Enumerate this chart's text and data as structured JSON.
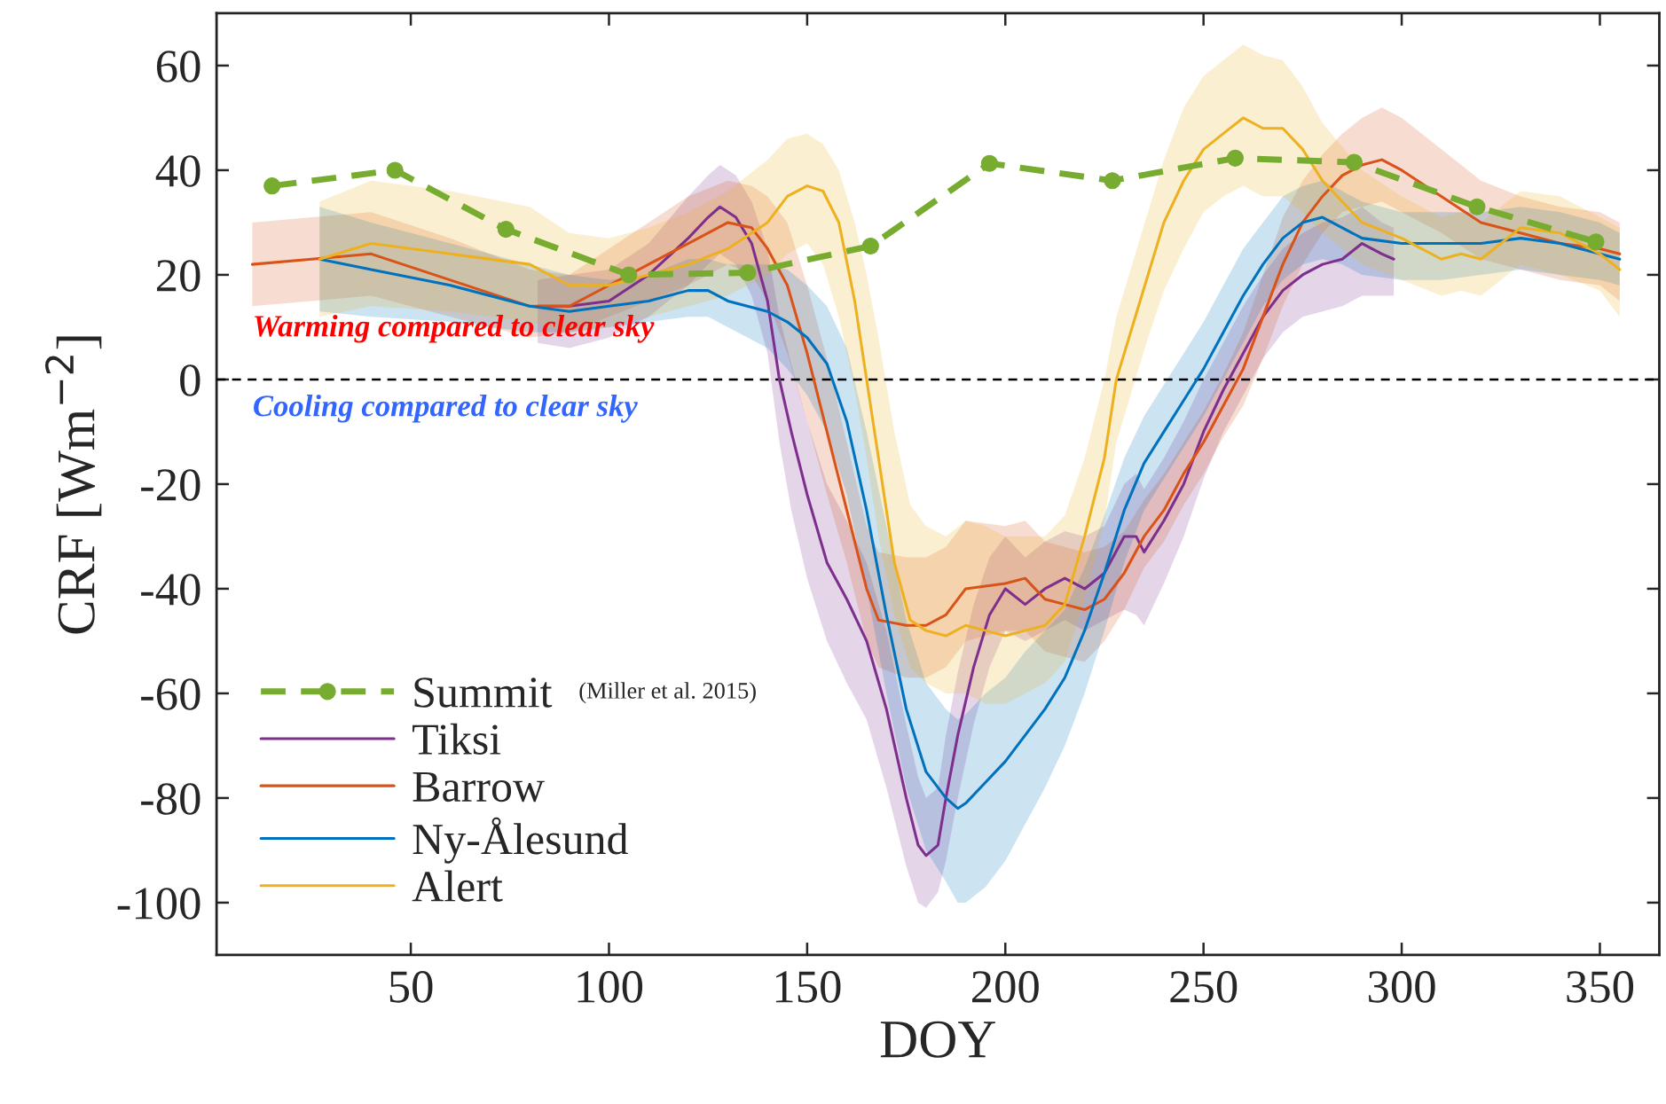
{
  "chart_data": {
    "type": "line",
    "xlabel": "DOY",
    "ylabel": "CRF [Wm$^{−2}$]",
    "xlim": [
      1,
      365
    ],
    "ylim": [
      -110,
      70
    ],
    "xticks": [
      50,
      100,
      150,
      200,
      250,
      300,
      350
    ],
    "yticks": [
      {
        "value": -100,
        "label": "-100"
      },
      {
        "value": -80,
        "label": "-80"
      },
      {
        "value": -60,
        "label": "-60"
      },
      {
        "value": -40,
        "label": "-40"
      },
      {
        "value": -20,
        "label": "-20"
      },
      0,
      20,
      40,
      60
    ],
    "grid": false,
    "legend": "bottom left",
    "ref_lines": [
      {
        "axis": "y",
        "value": 0,
        "color": "#000000",
        "line_style": "dashed"
      }
    ],
    "annotations": [
      "Warming compared to clear sky",
      "Cooling compared to clear sky",
      "(Miller et al. 2015)"
    ],
    "series": [
      {
        "name": "Summit",
        "color": "#77ac30",
        "marker": "circle",
        "line_style": "dashed",
        "x": [
          15,
          46,
          74,
          105,
          135,
          166,
          196,
          227,
          258,
          288,
          319,
          349
        ],
        "values": [
          37,
          40,
          28.7,
          20,
          20.4,
          25.5,
          41.3,
          38,
          42.3,
          41.5,
          33,
          26.3
        ]
      },
      {
        "name": "Tiksi",
        "color": "#7e2f8e",
        "marker": "none",
        "line_style": "solid",
        "x": [
          82,
          90,
          100,
          110,
          120,
          125,
          128,
          132,
          136,
          140,
          143,
          146,
          150,
          155,
          160,
          165,
          170,
          175,
          178,
          180,
          183,
          185,
          188,
          192,
          196,
          200,
          205,
          210,
          215,
          220,
          225,
          230,
          233,
          235,
          240,
          245,
          250,
          255,
          260,
          265,
          270,
          275,
          280,
          285,
          290,
          295,
          298
        ],
        "values": [
          14,
          14,
          15,
          20,
          27,
          31,
          33,
          31,
          26,
          15,
          0,
          -10,
          -22,
          -35,
          -42,
          -50,
          -63,
          -80,
          -89,
          -91,
          -89,
          -80,
          -68,
          -55,
          -45,
          -40,
          -43,
          -40,
          -38,
          -40,
          -37,
          -30,
          -30,
          -33,
          -27,
          -20,
          -10,
          -2,
          5,
          12,
          17,
          20,
          22,
          23,
          26,
          24,
          23
        ],
        "lower": [
          7,
          6,
          8,
          12,
          18,
          22,
          24,
          22,
          16,
          5,
          -12,
          -25,
          -38,
          -50,
          -58,
          -65,
          -78,
          -93,
          -100,
          -101,
          -98,
          -92,
          -80,
          -66,
          -55,
          -48,
          -50,
          -48,
          -46,
          -48,
          -46,
          -44,
          -45,
          -47,
          -39,
          -30,
          -19,
          -10,
          -3,
          4,
          9,
          12,
          13,
          14,
          16,
          16,
          16
        ],
        "upper": [
          19,
          20,
          21,
          26,
          35,
          39,
          41,
          39,
          34,
          25,
          12,
          3,
          -8,
          -20,
          -27,
          -35,
          -48,
          -66,
          -76,
          -80,
          -78,
          -68,
          -56,
          -43,
          -34,
          -30,
          -34,
          -31,
          -29,
          -30,
          -28,
          -20,
          -18,
          -21,
          -15,
          -8,
          0,
          7,
          14,
          20,
          25,
          28,
          30,
          31,
          33,
          30,
          29
        ]
      },
      {
        "name": "Barrow",
        "color": "#d95319",
        "marker": "none",
        "line_style": "solid",
        "x": [
          10,
          25,
          40,
          60,
          80,
          90,
          100,
          110,
          120,
          130,
          136,
          140,
          145,
          150,
          155,
          160,
          165,
          168,
          175,
          180,
          185,
          190,
          200,
          205,
          210,
          215,
          220,
          225,
          230,
          235,
          240,
          245,
          250,
          255,
          260,
          265,
          270,
          275,
          280,
          285,
          290,
          295,
          300,
          310,
          320,
          330,
          340,
          350,
          355
        ],
        "values": [
          22,
          23,
          24,
          19,
          14,
          14,
          18,
          22,
          26,
          30,
          29,
          25,
          18,
          5,
          -10,
          -25,
          -40,
          -46,
          -47,
          -47,
          -45,
          -40,
          -39,
          -38,
          -42,
          -43,
          -44,
          -42,
          -37,
          -30,
          -25,
          -18,
          -12,
          -5,
          2,
          12,
          22,
          30,
          35,
          39,
          41,
          42,
          40,
          35,
          30,
          28,
          26,
          25,
          24
        ],
        "lower": [
          14,
          15,
          16,
          12,
          8,
          9,
          12,
          15,
          18,
          22,
          20,
          15,
          5,
          -8,
          -22,
          -35,
          -50,
          -55,
          -57,
          -57,
          -55,
          -50,
          -48,
          -48,
          -52,
          -53,
          -54,
          -50,
          -44,
          -36,
          -31,
          -24,
          -18,
          -11,
          -5,
          4,
          14,
          22,
          28,
          32,
          33,
          34,
          32,
          28,
          23,
          21,
          19,
          18,
          15
        ],
        "upper": [
          30,
          31,
          32,
          27,
          21,
          20,
          25,
          30,
          35,
          38,
          37,
          35,
          30,
          18,
          4,
          -12,
          -28,
          -33,
          -34,
          -34,
          -32,
          -27,
          -28,
          -27,
          -31,
          -32,
          -33,
          -32,
          -29,
          -23,
          -18,
          -12,
          -6,
          1,
          9,
          20,
          31,
          38,
          43,
          47,
          50,
          52,
          50,
          44,
          38,
          35,
          33,
          32,
          30
        ]
      },
      {
        "name": "Ny-Ålesund",
        "color": "#0072bd",
        "marker": "none",
        "line_style": "solid",
        "x": [
          27,
          40,
          60,
          80,
          90,
          100,
          110,
          120,
          125,
          130,
          140,
          145,
          150,
          155,
          160,
          165,
          170,
          175,
          180,
          185,
          188,
          190,
          195,
          200,
          205,
          210,
          215,
          220,
          225,
          230,
          235,
          240,
          245,
          250,
          255,
          260,
          265,
          270,
          275,
          280,
          285,
          290,
          300,
          310,
          320,
          330,
          340,
          350,
          355
        ],
        "values": [
          23,
          21,
          18,
          14,
          13,
          14,
          15,
          17,
          17,
          15,
          13,
          11,
          8,
          3,
          -8,
          -25,
          -45,
          -63,
          -75,
          -80,
          -82,
          -81,
          -77,
          -73,
          -68,
          -63,
          -57,
          -48,
          -37,
          -25,
          -16,
          -10,
          -4,
          2,
          9,
          16,
          22,
          27,
          30,
          31,
          29,
          27,
          26,
          26,
          26,
          27,
          26,
          24,
          23
        ],
        "lower": [
          13,
          12,
          11,
          9,
          9,
          10,
          11,
          12,
          12,
          10,
          6,
          2,
          -3,
          -10,
          -22,
          -40,
          -60,
          -78,
          -90,
          -96,
          -100,
          -100,
          -97,
          -92,
          -85,
          -78,
          -70,
          -60,
          -48,
          -35,
          -25,
          -19,
          -13,
          -7,
          0,
          7,
          14,
          19,
          22,
          23,
          22,
          20,
          19,
          19,
          20,
          21,
          20,
          19,
          18
        ],
        "upper": [
          33,
          30,
          26,
          22,
          20,
          19,
          20,
          23,
          23,
          22,
          22,
          21,
          18,
          14,
          6,
          -10,
          -28,
          -46,
          -58,
          -63,
          -65,
          -64,
          -60,
          -57,
          -52,
          -48,
          -44,
          -36,
          -26,
          -15,
          -7,
          -1,
          5,
          11,
          18,
          25,
          30,
          35,
          37,
          38,
          36,
          34,
          32,
          32,
          32,
          33,
          32,
          30,
          28
        ]
      },
      {
        "name": "Alert",
        "color": "#edb120",
        "marker": "none",
        "line_style": "solid",
        "x": [
          27,
          40,
          60,
          80,
          90,
          100,
          110,
          120,
          130,
          140,
          145,
          150,
          154,
          158,
          162,
          165,
          168,
          172,
          176,
          180,
          185,
          190,
          195,
          200,
          205,
          210,
          215,
          220,
          225,
          228,
          232,
          236,
          240,
          245,
          250,
          255,
          260,
          265,
          270,
          275,
          280,
          290,
          300,
          310,
          315,
          320,
          330,
          340,
          350,
          355
        ],
        "values": [
          23,
          26,
          24,
          22,
          18,
          18,
          20,
          22,
          25,
          30,
          35,
          37,
          36,
          30,
          15,
          0,
          -15,
          -35,
          -46,
          -48,
          -49,
          -47,
          -48,
          -49,
          -48,
          -47,
          -43,
          -30,
          -15,
          0,
          10,
          20,
          30,
          38,
          44,
          47,
          50,
          48,
          48,
          44,
          38,
          30,
          27,
          23,
          24,
          23,
          29,
          28,
          24,
          21
        ],
        "lower": [
          12,
          14,
          13,
          11,
          9,
          10,
          12,
          14,
          16,
          20,
          24,
          26,
          22,
          12,
          -2,
          -15,
          -30,
          -45,
          -55,
          -58,
          -60,
          -60,
          -62,
          -62,
          -60,
          -58,
          -54,
          -42,
          -27,
          -12,
          -2,
          8,
          17,
          25,
          32,
          35,
          37,
          35,
          35,
          32,
          28,
          22,
          19,
          16,
          17,
          16,
          22,
          20,
          17,
          12
        ],
        "upper": [
          34,
          38,
          36,
          33,
          28,
          27,
          29,
          32,
          36,
          42,
          46,
          47,
          45,
          40,
          30,
          20,
          8,
          -10,
          -24,
          -28,
          -30,
          -27,
          -28,
          -30,
          -30,
          -30,
          -26,
          -15,
          0,
          12,
          22,
          32,
          42,
          52,
          58,
          61,
          64,
          62,
          61,
          56,
          49,
          40,
          35,
          31,
          32,
          30,
          36,
          35,
          31,
          29
        ]
      }
    ]
  }
}
